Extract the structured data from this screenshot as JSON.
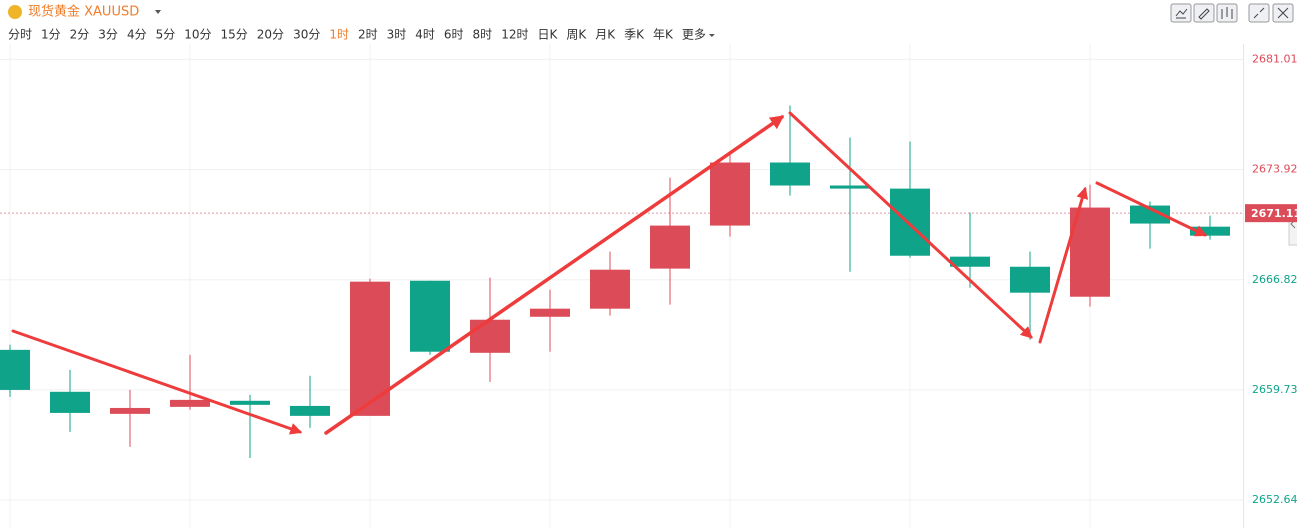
{
  "toolbar": {
    "symbol": "现货黄金 XAUUSD",
    "intervals": [
      "分时",
      "1分",
      "2分",
      "3分",
      "4分",
      "5分",
      "10分",
      "15分",
      "20分",
      "30分",
      "1时",
      "2时",
      "3时",
      "4时",
      "6时",
      "8时",
      "12时",
      "日K",
      "周K",
      "月K",
      "季K",
      "年K",
      "更多"
    ],
    "selected": 10
  },
  "chart_data": {
    "type": "candlestick",
    "open": [
      2662.31,
      2659.61,
      2658.19,
      2658.64,
      2659.03,
      2658.7,
      2658.06,
      2666.76,
      2662.12,
      2664.44,
      2664.96,
      2667.54,
      2670.31,
      2674.37,
      2672.89,
      2672.69,
      2668.31,
      2667.66,
      2665.73,
      2671.6,
      2670.24
    ],
    "high": [
      2662.64,
      2661.02,
      2659.73,
      2661.99,
      2659.41,
      2660.64,
      2666.89,
      2666.76,
      2666.96,
      2666.18,
      2668.63,
      2673.4,
      2674.89,
      2678.04,
      2675.98,
      2675.72,
      2671.15,
      2668.63,
      2672.95,
      2671.86,
      2670.95
    ],
    "low": [
      2659.28,
      2657.03,
      2656.06,
      2658.45,
      2655.35,
      2657.29,
      2658.06,
      2661.99,
      2660.25,
      2662.19,
      2664.51,
      2665.22,
      2669.6,
      2672.24,
      2667.34,
      2668.24,
      2666.31,
      2662.96,
      2665.09,
      2668.83,
      2669.41
    ],
    "close": [
      2659.73,
      2658.25,
      2658.57,
      2659.09,
      2658.77,
      2658.06,
      2666.7,
      2662.19,
      2664.25,
      2664.96,
      2667.47,
      2670.31,
      2674.37,
      2672.89,
      2672.69,
      2668.37,
      2667.66,
      2665.99,
      2671.47,
      2670.44,
      2669.66
    ],
    "up_color": "#dc4b58",
    "down_color": "#0fa38a",
    "ylim": [
      2652.0,
      2682.0
    ],
    "yticks": [
      2681.01,
      2673.92,
      2666.82,
      2659.73,
      2652.64
    ],
    "last_price": 2671.11,
    "grid": true
  }
}
